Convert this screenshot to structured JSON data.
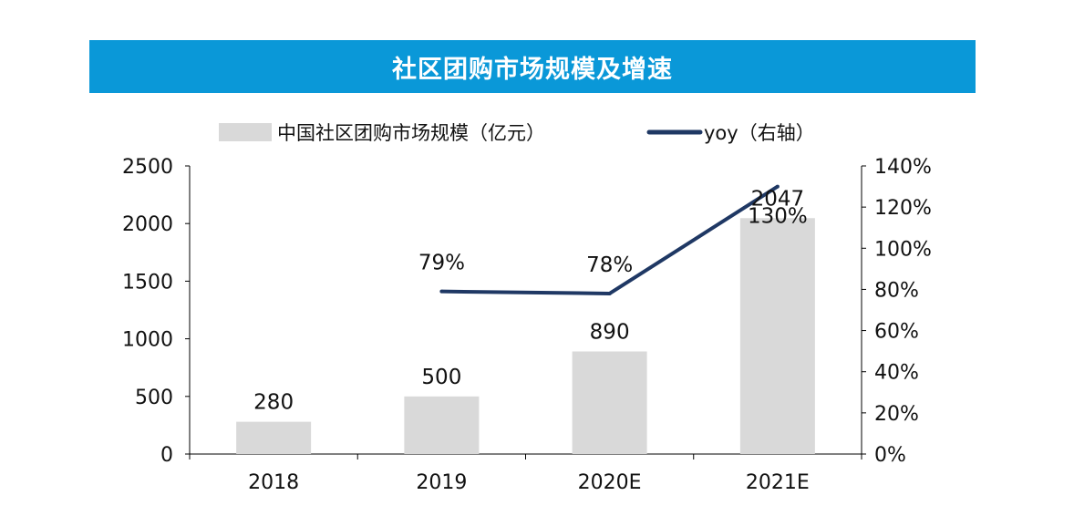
{
  "chart_data": {
    "type": "bar",
    "title": "社区团购市场规模及增速",
    "categories": [
      "2018",
      "2019",
      "2020E",
      "2021E"
    ],
    "series": [
      {
        "name": "中国社区团购市场规模（亿元）",
        "type": "bar",
        "axis": "left",
        "values": [
          280,
          500,
          890,
          2047
        ],
        "labels": [
          "280",
          "500",
          "890",
          "2047"
        ]
      },
      {
        "name": "yoy（右轴）",
        "type": "line",
        "axis": "right",
        "values": [
          null,
          79,
          78,
          130
        ],
        "labels": [
          "",
          "79%",
          "78%",
          "130%"
        ]
      }
    ],
    "ylim_left": [
      0,
      2500
    ],
    "ylim_right": [
      0,
      140
    ],
    "yticks_left": [
      "0",
      "500",
      "1000",
      "1500",
      "2000",
      "2500"
    ],
    "yticks_right": [
      "0%",
      "20%",
      "40%",
      "60%",
      "80%",
      "100%",
      "120%",
      "140%"
    ],
    "grid": false,
    "legend_position": "top",
    "colors": {
      "bar": "#d9d9d9",
      "line": "#1f3864",
      "title_bg": "#0a98d8"
    }
  }
}
